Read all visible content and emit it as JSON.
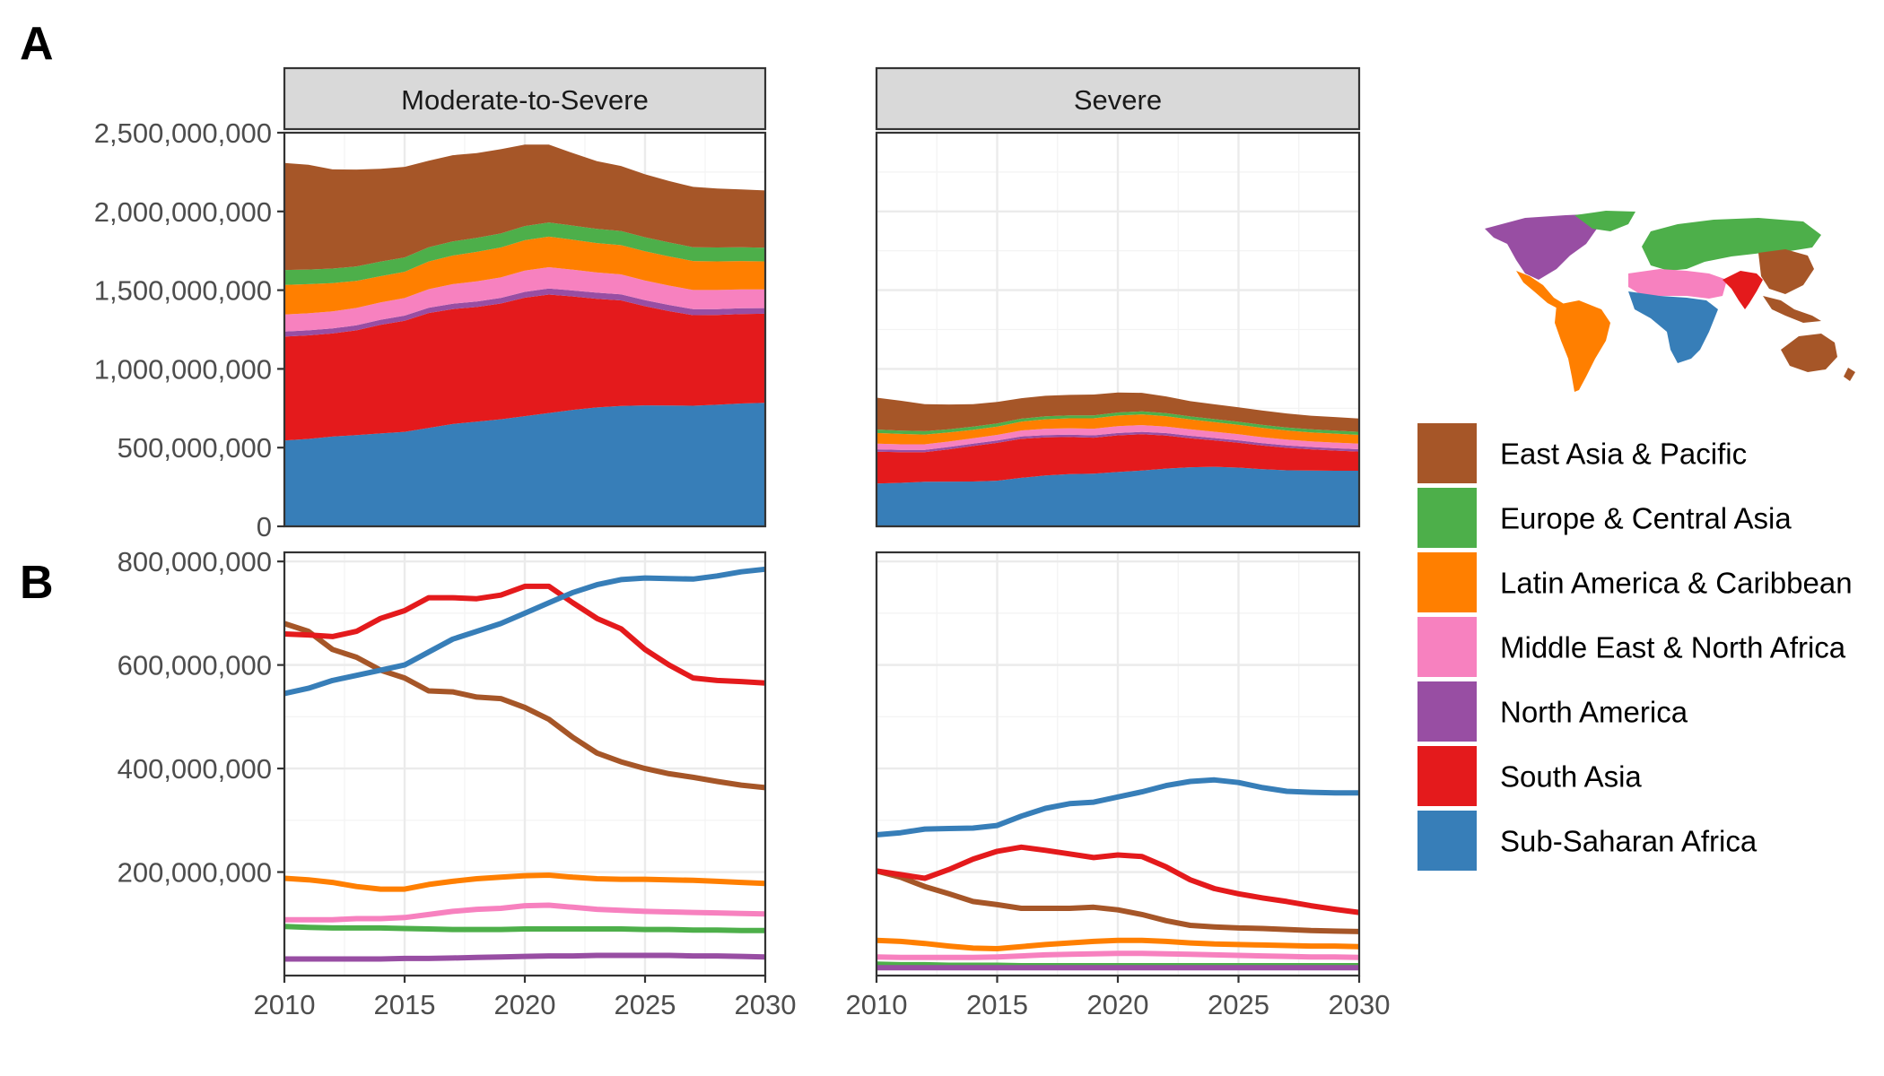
{
  "chart_data": {
    "type": "area",
    "panel_tags": [
      "A",
      "B"
    ],
    "facets": [
      "Moderate-to-Severe",
      "Severe"
    ],
    "x": [
      2010,
      2011,
      2012,
      2013,
      2014,
      2015,
      2016,
      2017,
      2018,
      2019,
      2020,
      2021,
      2022,
      2023,
      2024,
      2025,
      2026,
      2027,
      2028,
      2029,
      2030
    ],
    "x_ticks": [
      2010,
      2015,
      2020,
      2025,
      2030
    ],
    "legend_position": "right",
    "grid": true,
    "regions": [
      {
        "name": "East Asia & Pacific",
        "color": "#A65628"
      },
      {
        "name": "Europe & Central Asia",
        "color": "#4DAF4A"
      },
      {
        "name": "Latin America & Caribbean",
        "color": "#FF7F00"
      },
      {
        "name": "Middle East & North Africa",
        "color": "#F781BF"
      },
      {
        "name": "North America",
        "color": "#984EA3"
      },
      {
        "name": "South Asia",
        "color": "#E41A1C"
      },
      {
        "name": "Sub-Saharan Africa",
        "color": "#377EB8"
      }
    ],
    "panel_a": {
      "type": "area",
      "stacked": true,
      "ylim": [
        0,
        2500000000
      ],
      "y_ticks": [
        0,
        500000000,
        1000000000,
        1500000000,
        2000000000,
        2500000000
      ],
      "y_tick_labels": [
        "0",
        "500,000,000",
        "1,000,000,000",
        "1,500,000,000",
        "2,000,000,000",
        "2,500,000,000"
      ]
    },
    "panel_b": {
      "type": "line",
      "ylim": [
        0,
        800000000
      ],
      "y_ticks": [
        200000000,
        400000000,
        600000000,
        800000000
      ],
      "y_tick_labels": [
        "200,000,000",
        "400,000,000",
        "600,000,000",
        "800,000,000"
      ]
    },
    "series": {
      "Moderate-to-Severe": [
        {
          "name": "Sub-Saharan Africa",
          "values": [
            545000000,
            555000000,
            570000000,
            580000000,
            590000000,
            600000000,
            625000000,
            650000000,
            665000000,
            680000000,
            700000000,
            720000000,
            740000000,
            755000000,
            765000000,
            768000000,
            767000000,
            766000000,
            772000000,
            780000000,
            785000000
          ]
        },
        {
          "name": "South Asia",
          "values": [
            660000000,
            658000000,
            655000000,
            665000000,
            690000000,
            705000000,
            730000000,
            730000000,
            728000000,
            735000000,
            752000000,
            752000000,
            720000000,
            690000000,
            670000000,
            630000000,
            600000000,
            575000000,
            570000000,
            568000000,
            565000000
          ]
        },
        {
          "name": "North America",
          "values": [
            32000000,
            32000000,
            32000000,
            32000000,
            32000000,
            33000000,
            33000000,
            34000000,
            35000000,
            36000000,
            37000000,
            38000000,
            38000000,
            39000000,
            39000000,
            39000000,
            39000000,
            38000000,
            38000000,
            37000000,
            36000000
          ]
        },
        {
          "name": "Middle East & North Africa",
          "values": [
            108000000,
            108000000,
            108000000,
            110000000,
            110000000,
            112000000,
            118000000,
            124000000,
            128000000,
            130000000,
            135000000,
            136000000,
            132000000,
            128000000,
            126000000,
            124000000,
            123000000,
            122000000,
            121000000,
            120000000,
            119000000
          ]
        },
        {
          "name": "Latin America & Caribbean",
          "values": [
            188000000,
            185000000,
            180000000,
            172000000,
            167000000,
            167000000,
            176000000,
            182000000,
            187000000,
            190000000,
            193000000,
            194000000,
            190000000,
            187000000,
            186000000,
            186000000,
            185000000,
            184000000,
            182000000,
            180000000,
            178000000
          ]
        },
        {
          "name": "Europe & Central Asia",
          "values": [
            95000000,
            93000000,
            92000000,
            92000000,
            92000000,
            91000000,
            90000000,
            89000000,
            89000000,
            89000000,
            90000000,
            90000000,
            90000000,
            90000000,
            90000000,
            89000000,
            89000000,
            88000000,
            88000000,
            87000000,
            87000000
          ]
        },
        {
          "name": "East Asia & Pacific",
          "values": [
            680000000,
            665000000,
            630000000,
            615000000,
            590000000,
            575000000,
            550000000,
            548000000,
            538000000,
            535000000,
            518000000,
            495000000,
            460000000,
            430000000,
            413000000,
            400000000,
            390000000,
            383000000,
            375000000,
            368000000,
            363000000
          ]
        }
      ],
      "Severe": [
        {
          "name": "Sub-Saharan Africa",
          "values": [
            272000000,
            276000000,
            283000000,
            284000000,
            285000000,
            290000000,
            308000000,
            323000000,
            332000000,
            335000000,
            345000000,
            355000000,
            367000000,
            375000000,
            378000000,
            373000000,
            363000000,
            356000000,
            354000000,
            353000000,
            353000000
          ]
        },
        {
          "name": "South Asia",
          "values": [
            202000000,
            195000000,
            188000000,
            205000000,
            225000000,
            240000000,
            248000000,
            242000000,
            235000000,
            228000000,
            233000000,
            230000000,
            210000000,
            185000000,
            168000000,
            158000000,
            150000000,
            143000000,
            135000000,
            128000000,
            122000000
          ]
        },
        {
          "name": "North America",
          "values": [
            15000000,
            15000000,
            15000000,
            15000000,
            15000000,
            15000000,
            15000000,
            15000000,
            15000000,
            15000000,
            15000000,
            15000000,
            15000000,
            15000000,
            15000000,
            15000000,
            15000000,
            15000000,
            15000000,
            15000000,
            15000000
          ]
        },
        {
          "name": "Middle East & North Africa",
          "values": [
            36000000,
            35000000,
            35000000,
            35000000,
            35000000,
            36000000,
            38000000,
            40000000,
            41000000,
            42000000,
            43000000,
            43000000,
            42000000,
            41000000,
            40000000,
            39000000,
            38000000,
            37000000,
            36000000,
            36000000,
            35000000
          ]
        },
        {
          "name": "Latin America & Caribbean",
          "values": [
            68000000,
            66000000,
            62000000,
            57000000,
            53000000,
            52000000,
            56000000,
            60000000,
            63000000,
            66000000,
            68000000,
            68000000,
            66000000,
            63000000,
            61000000,
            60000000,
            59000000,
            58000000,
            57000000,
            57000000,
            56000000
          ]
        },
        {
          "name": "Europe & Central Asia",
          "values": [
            22000000,
            21000000,
            21000000,
            20000000,
            20000000,
            20000000,
            19000000,
            19000000,
            19000000,
            19000000,
            19000000,
            19000000,
            19000000,
            19000000,
            19000000,
            19000000,
            19000000,
            19000000,
            19000000,
            19000000,
            19000000
          ]
        },
        {
          "name": "East Asia & Pacific",
          "values": [
            202000000,
            190000000,
            172000000,
            158000000,
            143000000,
            137000000,
            130000000,
            130000000,
            130000000,
            132000000,
            127000000,
            118000000,
            106000000,
            97000000,
            94000000,
            92000000,
            91000000,
            89000000,
            87000000,
            86000000,
            85000000
          ]
        }
      ]
    }
  }
}
